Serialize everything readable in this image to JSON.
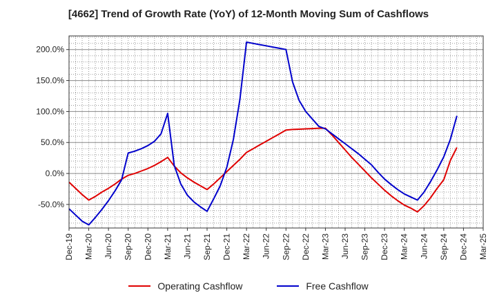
{
  "chart_data": {
    "type": "line",
    "title": "[4662]  Trend of Growth Rate (YoY) of 12-Month Moving Sum of Cashflows",
    "x": [
      "Dec-19",
      "Jan-20",
      "Feb-20",
      "Mar-20",
      "Apr-20",
      "May-20",
      "Jun-20",
      "Jul-20",
      "Aug-20",
      "Sep-20",
      "Oct-20",
      "Nov-20",
      "Dec-20",
      "Jan-21",
      "Feb-21",
      "Mar-21",
      "Apr-21",
      "May-21",
      "Jun-21",
      "Jul-21",
      "Aug-21",
      "Sep-21",
      "Oct-21",
      "Nov-21",
      "Dec-21",
      "Jan-22",
      "Feb-22",
      "Mar-22",
      "Apr-22",
      "May-22",
      "Jun-22",
      "Jul-22",
      "Aug-22",
      "Sep-22",
      "Oct-22",
      "Nov-22",
      "Dec-22",
      "Jan-23",
      "Feb-23",
      "Mar-23",
      "Apr-23",
      "May-23",
      "Jun-23",
      "Jul-23",
      "Aug-23",
      "Sep-23",
      "Oct-23",
      "Nov-23",
      "Dec-23",
      "Jan-24",
      "Feb-24",
      "Mar-24",
      "Apr-24",
      "May-24",
      "Jun-24",
      "Jul-24",
      "Aug-24",
      "Sep-24",
      "Oct-24",
      "Nov-24",
      "Dec-24",
      "Jan-25",
      "Feb-25",
      "Mar-25"
    ],
    "x_tick_labels": [
      "Dec-19",
      "Mar-20",
      "Jun-20",
      "Sep-20",
      "Dec-20",
      "Mar-21",
      "Jun-21",
      "Sep-21",
      "Dec-21",
      "Mar-22",
      "Jun-22",
      "Sep-22",
      "Dec-22",
      "Mar-23",
      "Jun-23",
      "Sep-23",
      "Dec-23",
      "Mar-24",
      "Jun-24",
      "Sep-24",
      "Dec-24",
      "Mar-25"
    ],
    "y_tick_labels": [
      "-50.0%",
      "0.0%",
      "50.0%",
      "100.0%",
      "150.0%",
      "200.0%"
    ],
    "y_ticks": [
      -50,
      0,
      50,
      100,
      150,
      200
    ],
    "ylim": [
      -88,
      222
    ],
    "grid": true,
    "legend_position": "bottom",
    "series": [
      {
        "name": "Operating Cashflow",
        "color": "#e00000",
        "values": [
          -14,
          -24,
          -34,
          -43,
          -37,
          -30,
          -24,
          -17,
          -9,
          -3,
          0,
          4,
          8,
          13,
          19,
          26,
          12,
          1,
          -7,
          -14,
          -20,
          -26,
          -17,
          -7,
          3,
          13,
          23,
          34,
          40,
          46,
          52,
          58,
          64,
          70,
          71,
          71.5,
          72,
          72.5,
          73,
          73,
          62,
          50,
          38,
          26,
          15,
          4,
          -7,
          -17,
          -27,
          -36,
          -44,
          -51,
          -56,
          -62,
          -52,
          -39,
          -24,
          -10,
          21,
          42,
          null,
          null,
          null,
          null
        ]
      },
      {
        "name": "Free Cashflow",
        "color": "#0000cc",
        "values": [
          -57,
          -67,
          -77,
          -83,
          -71,
          -58,
          -44,
          -28,
          -10,
          33,
          36,
          40,
          45,
          52,
          64,
          97,
          13,
          -17,
          -35,
          -46,
          -54,
          -61,
          -41,
          -20,
          10,
          55,
          120,
          212,
          210,
          208,
          206,
          204,
          202,
          200,
          148,
          118,
          100,
          88,
          76,
          72,
          64,
          56,
          48,
          40,
          32,
          23,
          14,
          2,
          -9,
          -18,
          -26,
          -33,
          -38,
          -43,
          -30,
          -13,
          6,
          27,
          55,
          93,
          null,
          null,
          null,
          null
        ]
      }
    ]
  },
  "legend": {
    "operating_label": "Operating Cashflow",
    "free_label": "Free Cashflow"
  }
}
